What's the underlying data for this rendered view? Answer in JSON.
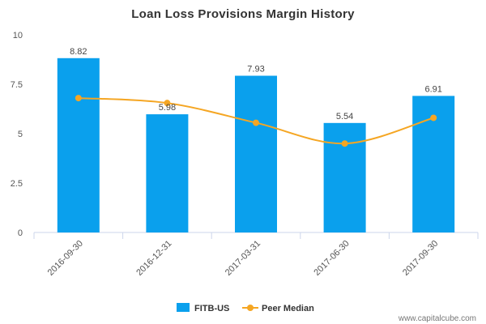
{
  "chart_data": {
    "type": "bar",
    "title": "Loan Loss Provisions Margin History",
    "categories": [
      "2016-09-30",
      "2016-12-31",
      "2017-03-31",
      "2017-06-30",
      "2017-09-30"
    ],
    "series": [
      {
        "name": "FITB-US",
        "type": "bar",
        "values": [
          8.82,
          5.98,
          7.93,
          5.54,
          6.91
        ],
        "data_labels": [
          "8.82",
          "5.98",
          "7.93",
          "5.54",
          "6.91"
        ],
        "color": "#0aa0ed"
      },
      {
        "name": "Peer Median",
        "type": "line",
        "values": [
          6.8,
          6.55,
          5.55,
          4.5,
          5.8
        ],
        "color": "#f5a623"
      }
    ],
    "yticks": [
      "0",
      "2.5",
      "5",
      "7.5",
      "10"
    ],
    "ylim": [
      0,
      10
    ],
    "xlabel": "",
    "ylabel": "",
    "legend_position": "bottom-center",
    "grid": false
  },
  "footer": {
    "watermark": "www.capitalcube.com"
  }
}
